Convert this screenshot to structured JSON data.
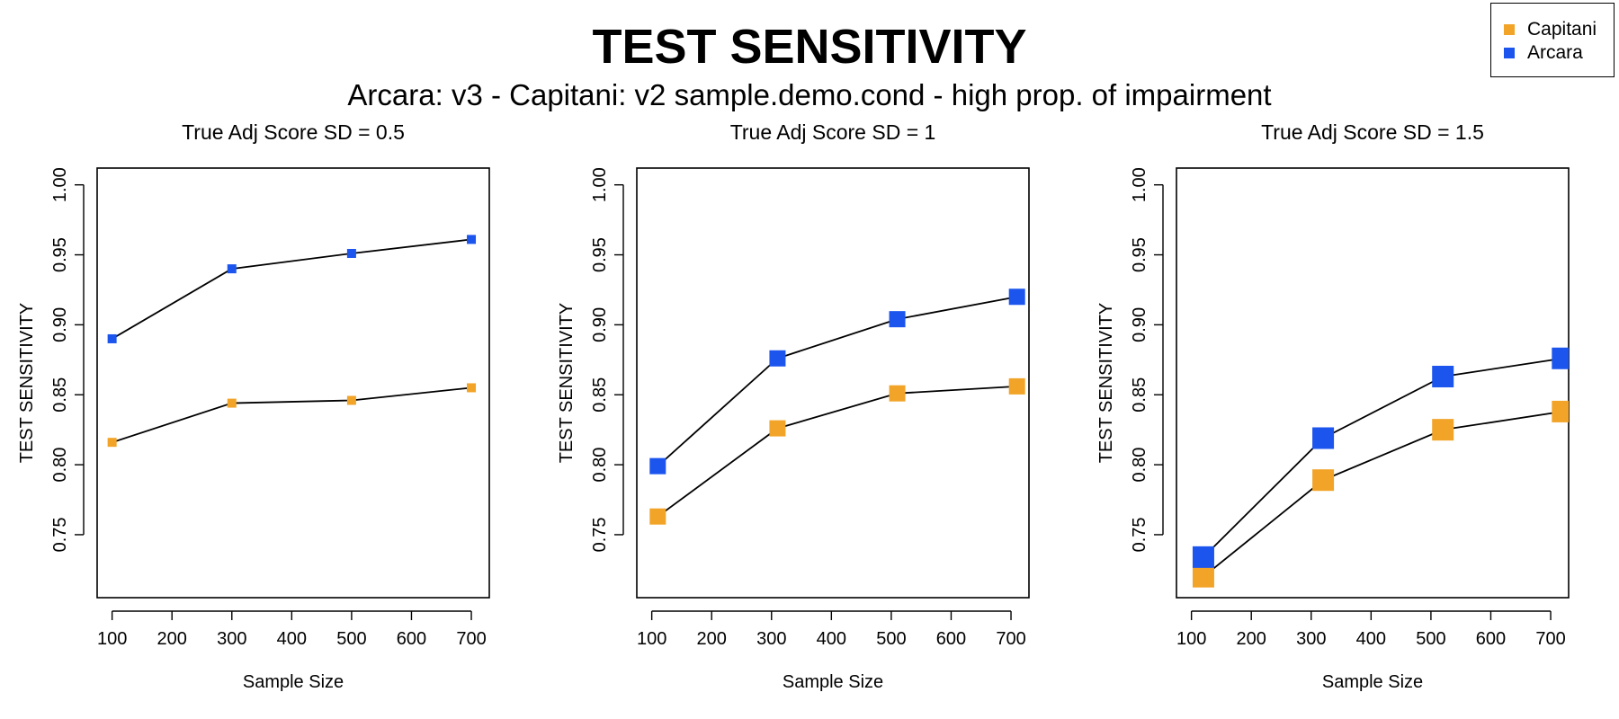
{
  "title": "TEST SENSITIVITY",
  "subtitle": "Arcara: v3 - Capitani: v2 sample.demo.cond - high prop. of impairment",
  "legend": {
    "items": [
      {
        "name": "Capitani",
        "color": "#F2A428"
      },
      {
        "name": "Arcara",
        "color": "#1B55EE"
      }
    ],
    "placement": "top-right"
  },
  "chart_data": [
    {
      "type": "line",
      "title": "True Adj Score SD = 0.5",
      "xlabel": "Sample Size",
      "ylabel": "TEST SENSITIVITY",
      "xlim": [
        75,
        730
      ],
      "ylim": [
        0.705,
        1.012
      ],
      "xticks": [
        100,
        200,
        300,
        400,
        500,
        600,
        700
      ],
      "yticks": [
        "0.75",
        "0.80",
        "0.85",
        "0.90",
        "0.95",
        "1.00"
      ],
      "grid": false,
      "series": [
        {
          "name": "Capitani",
          "color": "#F2A428",
          "x": [
            100,
            300,
            500,
            700
          ],
          "y": [
            0.816,
            0.844,
            0.846,
            0.855
          ]
        },
        {
          "name": "Arcara",
          "color": "#1B55EE",
          "x": [
            100,
            300,
            500,
            700
          ],
          "y": [
            0.89,
            0.94,
            0.951,
            0.961
          ]
        }
      ]
    },
    {
      "type": "line",
      "title": "True Adj Score SD = 1",
      "xlabel": "Sample Size",
      "ylabel": "TEST SENSITIVITY",
      "xlim": [
        75,
        730
      ],
      "ylim": [
        0.705,
        1.012
      ],
      "xticks": [
        100,
        200,
        300,
        400,
        500,
        600,
        700
      ],
      "yticks": [
        "0.75",
        "0.80",
        "0.85",
        "0.90",
        "0.95",
        "1.00"
      ],
      "grid": false,
      "series": [
        {
          "name": "Capitani",
          "color": "#F2A428",
          "x": [
            110,
            310,
            510,
            710
          ],
          "y": [
            0.763,
            0.826,
            0.851,
            0.856
          ]
        },
        {
          "name": "Arcara",
          "color": "#1B55EE",
          "x": [
            110,
            310,
            510,
            710
          ],
          "y": [
            0.799,
            0.876,
            0.904,
            0.92
          ]
        }
      ]
    },
    {
      "type": "line",
      "title": "True Adj Score SD = 1.5",
      "xlabel": "Sample Size",
      "ylabel": "TEST SENSITIVITY",
      "xlim": [
        75,
        730
      ],
      "ylim": [
        0.705,
        1.012
      ],
      "xticks": [
        100,
        200,
        300,
        400,
        500,
        600,
        700
      ],
      "yticks": [
        "0.75",
        "0.80",
        "0.85",
        "0.90",
        "0.95",
        "1.00"
      ],
      "grid": false,
      "series": [
        {
          "name": "Capitani",
          "color": "#F2A428",
          "x": [
            120,
            320,
            520,
            720
          ],
          "y": [
            0.72,
            0.789,
            0.825,
            0.838
          ]
        },
        {
          "name": "Arcara",
          "color": "#1B55EE",
          "x": [
            120,
            320,
            520,
            720
          ],
          "y": [
            0.734,
            0.819,
            0.863,
            0.876
          ]
        }
      ]
    }
  ]
}
